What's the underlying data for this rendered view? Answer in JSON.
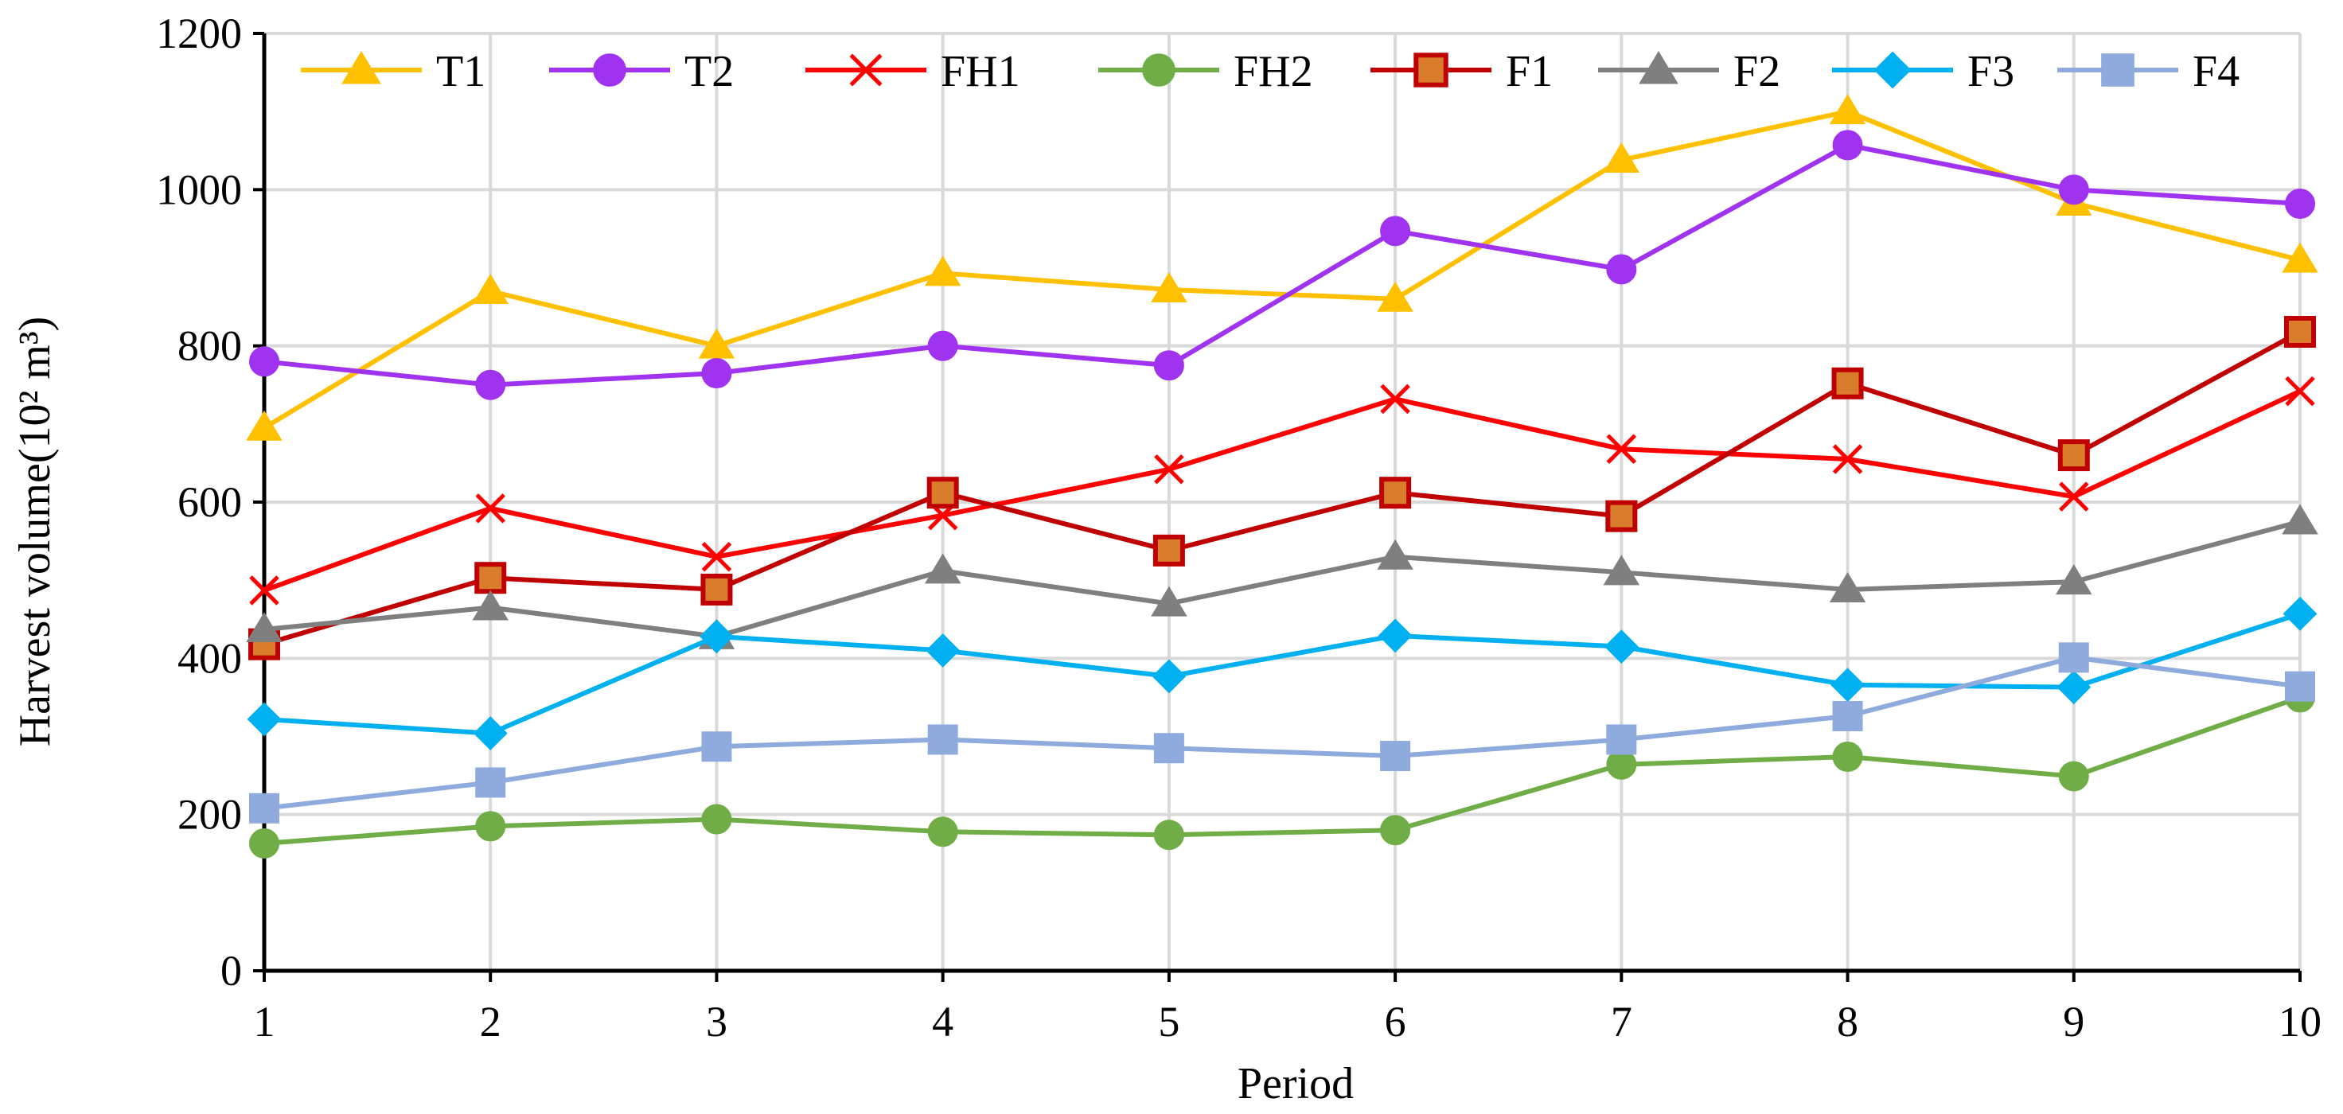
{
  "chart_data": {
    "type": "line",
    "title": "",
    "xlabel": "Period",
    "ylabel": "Harvest volume(10² m³)",
    "x": [
      1,
      2,
      3,
      4,
      5,
      6,
      7,
      8,
      9,
      10
    ],
    "xlim": [
      1,
      10
    ],
    "ylim": [
      0,
      1200
    ],
    "yticks": [
      0,
      200,
      400,
      600,
      800,
      1000,
      1200
    ],
    "grid": true,
    "legend_position": "top",
    "series": [
      {
        "name": "T1",
        "color": "#FFC000",
        "marker": "triangle",
        "values": [
          695,
          870,
          800,
          893,
          872,
          860,
          1038,
          1100,
          983,
          910
        ]
      },
      {
        "name": "T2",
        "color": "#A033F0",
        "marker": "circle",
        "values": [
          780,
          750,
          765,
          800,
          775,
          947,
          898,
          1057,
          1000,
          982
        ]
      },
      {
        "name": "FH1",
        "color": "#FF0000",
        "marker": "x",
        "values": [
          487,
          592,
          530,
          583,
          642,
          732,
          668,
          655,
          607,
          742
        ]
      },
      {
        "name": "FH2",
        "color": "#70AD47",
        "marker": "circle",
        "values": [
          163,
          185,
          194,
          178,
          174,
          180,
          264,
          274,
          249,
          350
        ]
      },
      {
        "name": "F1",
        "color": "#C00000",
        "fill": "#D97C2B",
        "marker": "square",
        "values": [
          418,
          503,
          488,
          612,
          538,
          612,
          582,
          752,
          660,
          818
        ]
      },
      {
        "name": "F2",
        "color": "#7F7F7F",
        "marker": "triangle",
        "values": [
          437,
          465,
          428,
          512,
          470,
          530,
          510,
          488,
          498,
          575
        ]
      },
      {
        "name": "F3",
        "color": "#00B0F0",
        "marker": "diamond",
        "values": [
          322,
          304,
          428,
          410,
          377,
          429,
          415,
          366,
          363,
          457
        ]
      },
      {
        "name": "F4",
        "color": "#8FAADC",
        "marker": "square-plain",
        "values": [
          208,
          241,
          287,
          296,
          285,
          275,
          296,
          326,
          401,
          364
        ]
      }
    ]
  }
}
